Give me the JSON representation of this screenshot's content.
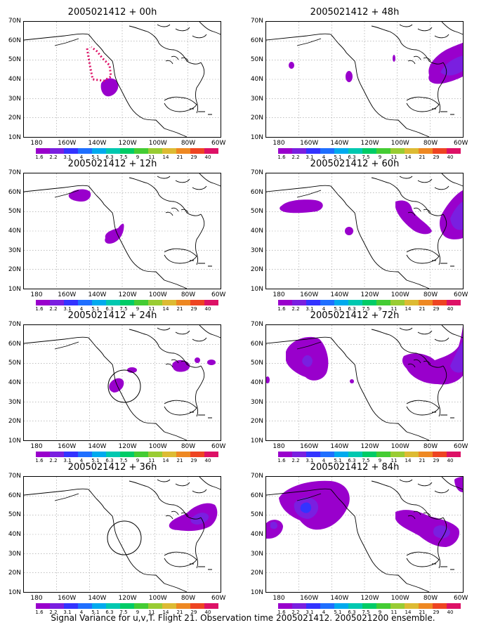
{
  "panels": [
    {
      "title": "2005021412 + 00h"
    },
    {
      "title": "2005021412 + 48h"
    },
    {
      "title": "2005021412 + 12h"
    },
    {
      "title": "2005021412 + 60h"
    },
    {
      "title": "2005021412 + 24h"
    },
    {
      "title": "2005021412 + 72h"
    },
    {
      "title": "2005021412 + 36h"
    },
    {
      "title": "2005021412 + 84h"
    }
  ],
  "y_ticks": [
    "70N",
    "60N",
    "50N",
    "40N",
    "30N",
    "20N",
    "10N"
  ],
  "x_ticks": [
    "180",
    "160W",
    "140W",
    "120W",
    "100W",
    "80W",
    "60W"
  ],
  "colorbar": {
    "labels": [
      "1.6",
      "2.2",
      "3.1",
      "4",
      "5.1",
      "6.3",
      "7.5",
      "9",
      "11",
      "14",
      "21",
      "29",
      "40"
    ],
    "colors": [
      "#9900cc",
      "#7a1fe0",
      "#3333ff",
      "#1f6fff",
      "#00aaee",
      "#00c8b0",
      "#00cc66",
      "#44cc33",
      "#99cc33",
      "#ddbb33",
      "#ee8822",
      "#ee4422",
      "#dd1166"
    ]
  },
  "caption": "Signal Variance for u,v,T. Flight 21. Observation time 2005021412. 2005021200 ensemble."
}
